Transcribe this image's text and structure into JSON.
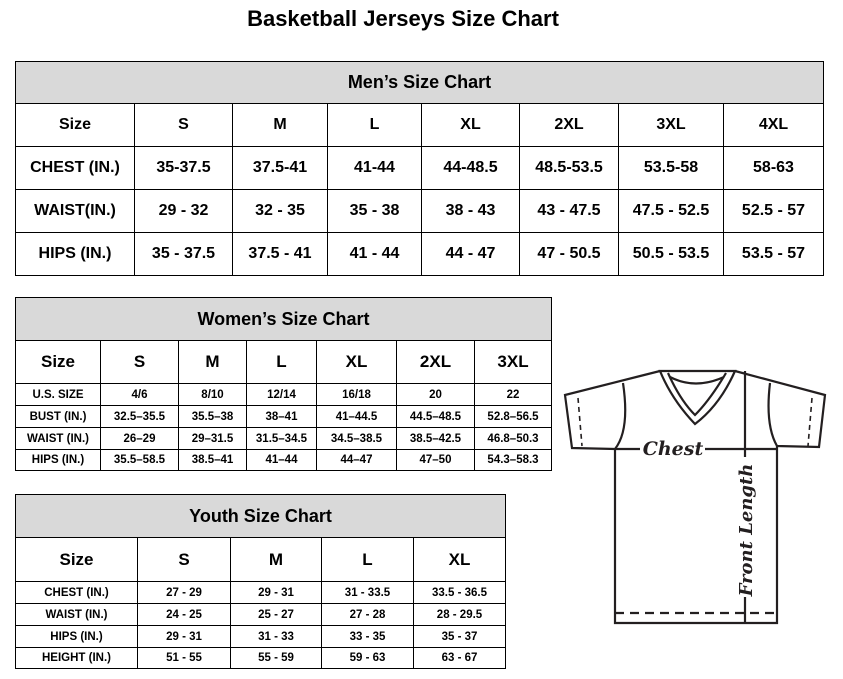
{
  "title": "Basketball Jerseys Size Chart",
  "men": {
    "title": "Men’s Size Chart",
    "rows": [
      [
        "Size",
        "S",
        "M",
        "L",
        "XL",
        "2XL",
        "3XL",
        "4XL"
      ],
      [
        "CHEST (IN.)",
        "35-37.5",
        "37.5-41",
        "41-44",
        "44-48.5",
        "48.5-53.5",
        "53.5-58",
        "58-63"
      ],
      [
        "WAIST(IN.)",
        "29 - 32",
        "32 - 35",
        "35 - 38",
        "38 - 43",
        "43 - 47.5",
        "47.5 - 52.5",
        "52.5 - 57"
      ],
      [
        "HIPS (IN.)",
        "35 - 37.5",
        "37.5 - 41",
        "41 - 44",
        "44 - 47",
        "47 - 50.5",
        "50.5 - 53.5",
        "53.5 - 57"
      ]
    ]
  },
  "women": {
    "title": "Women’s Size Chart",
    "rows": [
      [
        "Size",
        "S",
        "M",
        "L",
        "XL",
        "2XL",
        "3XL"
      ],
      [
        "U.S. SIZE",
        "4/6",
        "8/10",
        "12/14",
        "16/18",
        "20",
        "22"
      ],
      [
        "BUST (IN.)",
        "32.5–35.5",
        "35.5–38",
        "38–41",
        "41–44.5",
        "44.5–48.5",
        "52.8–56.5"
      ],
      [
        "WAIST (IN.)",
        "26–29",
        "29–31.5",
        "31.5–34.5",
        "34.5–38.5",
        "38.5–42.5",
        "46.8–50.3"
      ],
      [
        "HIPS (IN.)",
        "35.5–58.5",
        "38.5–41",
        "41–44",
        "44–47",
        "47–50",
        "54.3–58.3"
      ]
    ]
  },
  "youth": {
    "title": "Youth Size Chart",
    "rows": [
      [
        "Size",
        "S",
        "M",
        "L",
        "XL"
      ],
      [
        "CHEST (IN.)",
        "27 - 29",
        "29 - 31",
        "31 - 33.5",
        "33.5 - 36.5"
      ],
      [
        "WAIST (IN.)",
        "24 - 25",
        "25 - 27",
        "27 - 28",
        "28 - 29.5"
      ],
      [
        "HIPS (IN.)",
        "29 - 31",
        "31 - 33",
        "33 - 35",
        "35 - 37"
      ],
      [
        "HEIGHT (IN.)",
        "51 - 55",
        "55 - 59",
        "59 - 63",
        "63 - 67"
      ]
    ]
  },
  "diagram": {
    "chest_label": "Chest",
    "length_label": "Front Length"
  }
}
